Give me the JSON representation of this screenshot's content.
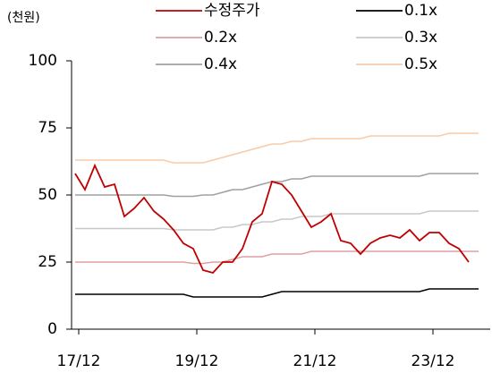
{
  "chart_data": {
    "type": "line",
    "unit_label": "(천원)",
    "categories": [
      "17/12",
      null,
      null,
      null,
      null,
      null,
      null,
      null,
      null,
      null,
      null,
      null,
      "19/12",
      null,
      null,
      null,
      null,
      null,
      null,
      null,
      null,
      null,
      null,
      null,
      "21/12",
      null,
      null,
      null,
      null,
      null,
      null,
      null,
      null,
      null,
      null,
      null,
      "23/12",
      null,
      null,
      null,
      null,
      null
    ],
    "series": [
      {
        "name": "수정주가",
        "color": "#c00000",
        "values": [
          58,
          52,
          61,
          53,
          54,
          42,
          45,
          49,
          44,
          41,
          37,
          32,
          30,
          22,
          21,
          25,
          25,
          30,
          40,
          43,
          55,
          54,
          50,
          44,
          38,
          40,
          43,
          33,
          32,
          28,
          32,
          34,
          35,
          34,
          37,
          33,
          36,
          36,
          32,
          30,
          25,
          null
        ]
      },
      {
        "name": "0.1x",
        "color": "#000000",
        "values": [
          13,
          13,
          13,
          13,
          13,
          13,
          13,
          13,
          13,
          13,
          13,
          13,
          12,
          12,
          12,
          12,
          12,
          12,
          12,
          12,
          13,
          14,
          14,
          14,
          14,
          14,
          14,
          14,
          14,
          14,
          14,
          14,
          14,
          14,
          14,
          14,
          15,
          15,
          15,
          15,
          15,
          15
        ]
      },
      {
        "name": "0.2x",
        "color": "#e0a0a0",
        "values": [
          25,
          25,
          25,
          25,
          25,
          25,
          25,
          25,
          25,
          25,
          25,
          25,
          24.5,
          24.5,
          25,
          25,
          26,
          27,
          27,
          27,
          28,
          28,
          28,
          28,
          29,
          29,
          29,
          29,
          29,
          29,
          29,
          29,
          29,
          29,
          29,
          29,
          29,
          29,
          29,
          29,
          29,
          29
        ]
      },
      {
        "name": "0.3x",
        "color": "#c8c8c8",
        "values": [
          37.5,
          37.5,
          37.5,
          37.5,
          37.5,
          37.5,
          37.5,
          37.5,
          37.5,
          37.5,
          37,
          37,
          37,
          37,
          37,
          38,
          38,
          39,
          39,
          40,
          40,
          41,
          41,
          42,
          42,
          42,
          43,
          43,
          43,
          43,
          43,
          43,
          43,
          43,
          43,
          43,
          44,
          44,
          44,
          44,
          44,
          44
        ]
      },
      {
        "name": "0.4x",
        "color": "#a0a0a0",
        "values": [
          50,
          50,
          50,
          50,
          50,
          50,
          50,
          50,
          50,
          50,
          49.5,
          49.5,
          49.5,
          50,
          50,
          51,
          52,
          52,
          53,
          54,
          55,
          55,
          56,
          56,
          57,
          57,
          57,
          57,
          57,
          57,
          57,
          57,
          57,
          57,
          57,
          57,
          58,
          58,
          58,
          58,
          58,
          58
        ]
      },
      {
        "name": "0.5x",
        "color": "#f8cba8",
        "values": [
          63,
          63,
          63,
          63,
          63,
          63,
          63,
          63,
          63,
          63,
          62,
          62,
          62,
          62,
          63,
          64,
          65,
          66,
          67,
          68,
          69,
          69,
          70,
          70,
          71,
          71,
          71,
          71,
          71,
          71,
          72,
          72,
          72,
          72,
          72,
          72,
          72,
          72,
          73,
          73,
          73,
          73
        ]
      }
    ],
    "ylim": [
      0,
      100
    ],
    "yticks": [
      0,
      25,
      50,
      75,
      100
    ]
  }
}
